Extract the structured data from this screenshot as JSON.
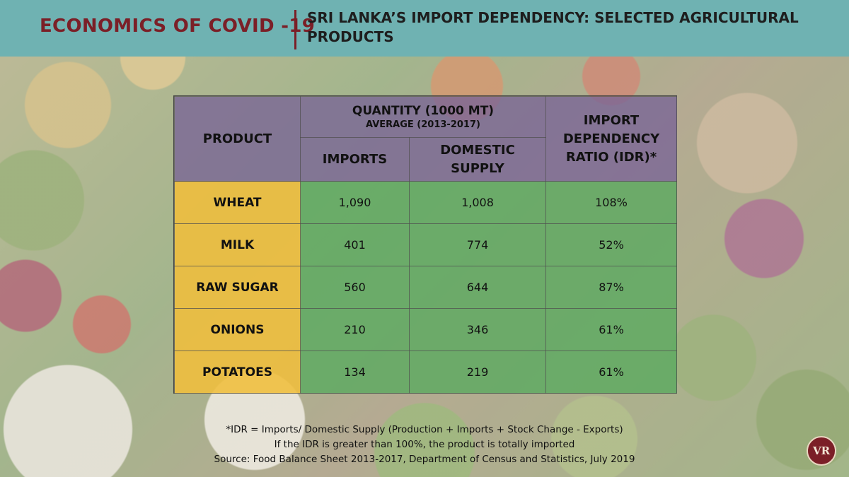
{
  "header": {
    "series_title": "ECONOMICS OF COVID -19",
    "title": "SRI LANKA’S IMPORT DEPENDENCY: SELECTED AGRICULTURAL PRODUCTS"
  },
  "logo": {
    "text": "VR"
  },
  "chart_data": {
    "type": "table",
    "title": "SRI LANKA’S IMPORT DEPENDENCY: SELECTED AGRICULTURAL PRODUCTS",
    "columns": {
      "product": "PRODUCT",
      "quantity_group": "QUANTITY (1000 MT)",
      "quantity_subtitle": "AVERAGE (2013-2017)",
      "imports": "IMPORTS",
      "domestic_supply": "DOMESTIC SUPPLY",
      "idr": "IMPORT DEPENDENCY RATIO (IDR)*"
    },
    "rows": [
      {
        "product": "WHEAT",
        "imports": "1,090",
        "domestic_supply": "1,008",
        "idr": "108%"
      },
      {
        "product": "MILK",
        "imports": "401",
        "domestic_supply": "774",
        "idr": "52%"
      },
      {
        "product": "RAW SUGAR",
        "imports": "560",
        "domestic_supply": "644",
        "idr": "87%"
      },
      {
        "product": "ONIONS",
        "imports": "210",
        "domestic_supply": "346",
        "idr": "61%"
      },
      {
        "product": "POTATOES",
        "imports": "134",
        "domestic_supply": "219",
        "idr": "61%"
      }
    ]
  },
  "footnote": {
    "line1": "*IDR = Imports/ Domestic Supply (Production + Imports + Stock Change - Exports)",
    "line2": "If the IDR is greater than 100%, the product is totally imported",
    "line3": "Source: Food Balance Sheet 2013-2017,  Department of Census and Statistics, July 2019"
  },
  "colors": {
    "header_band": "#6fb2b2",
    "brand_maroon": "#7b1f27",
    "header_cells": "#7864966",
    "product_cells": "#f0be3c",
    "value_cells": "#5aaa5f"
  }
}
